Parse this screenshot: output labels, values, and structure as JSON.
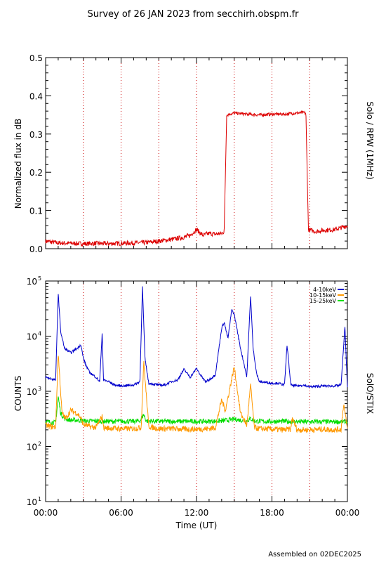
{
  "title": "Survey of 26 JAN 2023 from secchirh.obspm.fr",
  "footer": "Assembled on 02DEC2025",
  "colors": {
    "axis": "#000000",
    "hour_marker": "#cc0000",
    "rpw": "#dd0000",
    "stix_4_10": "#0000cc",
    "stix_10_15": "#ff9900",
    "stix_15_25": "#00dd00"
  },
  "chart_data": [
    {
      "type": "line",
      "ylabel": "Normalized flux in dB",
      "right_label": "Solo / RPW (1MHz)",
      "xlim": [
        "00:00",
        "24:00"
      ],
      "ylim": [
        0,
        0.5
      ],
      "yticks": [
        "0.0",
        "0.1",
        "0.2",
        "0.3",
        "0.4",
        "0.5"
      ],
      "ytick_values": [
        0,
        0.1,
        0.2,
        0.3,
        0.4,
        0.5
      ],
      "hour_markers": [
        3,
        6,
        9,
        12,
        15,
        18,
        21
      ],
      "series": [
        {
          "color": "#dd0000",
          "x_hours": [
            0,
            1,
            2,
            3,
            4,
            5,
            6,
            7,
            8,
            9,
            10,
            11,
            11.5,
            12,
            12.5,
            13,
            13.5,
            14,
            14.2,
            14.4,
            15,
            16,
            17,
            18,
            19,
            20,
            20.5,
            20.7,
            20.9,
            21.5,
            22,
            23,
            24
          ],
          "values": [
            0.02,
            0.015,
            0.014,
            0.013,
            0.014,
            0.013,
            0.014,
            0.015,
            0.016,
            0.02,
            0.024,
            0.03,
            0.035,
            0.05,
            0.035,
            0.04,
            0.038,
            0.04,
            0.045,
            0.35,
            0.355,
            0.352,
            0.35,
            0.352,
            0.352,
            0.355,
            0.356,
            0.355,
            0.05,
            0.045,
            0.048,
            0.05,
            0.06
          ]
        }
      ]
    },
    {
      "type": "line",
      "ylabel": "COUNTS",
      "right_label": "SolO/STIX",
      "xlabel": "Time (UT)",
      "xlim": [
        "00:00",
        "24:00"
      ],
      "yscale": "log",
      "ylim": [
        10,
        100000
      ],
      "yticks_base": [
        "10",
        "10",
        "10",
        "10",
        "10"
      ],
      "yticks_exp": [
        "1",
        "2",
        "3",
        "4",
        "5"
      ],
      "ytick_values": [
        10,
        100,
        1000,
        10000,
        100000
      ],
      "xticks": [
        "00:00",
        "06:00",
        "12:00",
        "18:00",
        "00:00"
      ],
      "xtick_hours": [
        0,
        6,
        12,
        18,
        24
      ],
      "hour_markers": [
        3,
        6,
        9,
        12,
        15,
        18,
        21
      ],
      "legend": [
        "4-10keV",
        "10-15keV",
        "15-25keV"
      ],
      "series": [
        {
          "name": "4-10keV",
          "color": "#0000cc",
          "x_hours": [
            0,
            0.8,
            1.0,
            1.2,
            1.5,
            2.0,
            2.5,
            2.8,
            3.0,
            3.2,
            3.5,
            4.0,
            4.3,
            4.5,
            4.6,
            5,
            5.5,
            6,
            7,
            7.5,
            7.7,
            7.9,
            8.2,
            9,
            9.5,
            10,
            10.5,
            11,
            11.5,
            12,
            12.3,
            12.7,
            13.0,
            13.5,
            14.0,
            14.2,
            14.5,
            14.8,
            15.0,
            15.5,
            15.8,
            16.0,
            16.3,
            16.5,
            16.8,
            17,
            18,
            18.5,
            19,
            19.2,
            19.5,
            20,
            20.5,
            21,
            22,
            23,
            23.5,
            23.8,
            24
          ],
          "values": [
            1800,
            1600,
            60000,
            12000,
            6000,
            5000,
            6000,
            7000,
            4000,
            3000,
            2200,
            1800,
            1500,
            12000,
            1600,
            1500,
            1300,
            1250,
            1300,
            1500,
            80000,
            4000,
            1400,
            1300,
            1300,
            1500,
            1600,
            2500,
            1800,
            2600,
            2000,
            1500,
            1600,
            2000,
            14000,
            18000,
            9000,
            30000,
            25000,
            6000,
            3000,
            1800,
            55000,
            6000,
            2000,
            1500,
            1400,
            1400,
            1300,
            7000,
            1300,
            1250,
            1300,
            1200,
            1250,
            1250,
            1300,
            15000,
            1200
          ]
        },
        {
          "name": "10-15keV",
          "color": "#ff9900",
          "x_hours": [
            0,
            0.8,
            1.0,
            1.3,
            1.6,
            2.0,
            2.5,
            2.8,
            3.0,
            3.5,
            4.0,
            4.5,
            4.6,
            5,
            6,
            7,
            7.6,
            7.8,
            8.2,
            9,
            10,
            11,
            12,
            13,
            13.5,
            14.0,
            14.3,
            14.6,
            15.0,
            15.5,
            16.0,
            16.3,
            16.6,
            17,
            18,
            19,
            19.5,
            19.6,
            20,
            21,
            22,
            23,
            23.5,
            23.7,
            24
          ],
          "values": [
            240,
            220,
            5000,
            400,
            320,
            450,
            400,
            330,
            250,
            230,
            220,
            350,
            220,
            215,
            210,
            210,
            220,
            3500,
            230,
            210,
            210,
            205,
            205,
            210,
            220,
            700,
            450,
            1000,
            2800,
            400,
            240,
            1300,
            220,
            210,
            205,
            200,
            205,
            330,
            200,
            200,
            205,
            200,
            205,
            600,
            200
          ]
        },
        {
          "name": "15-25keV",
          "color": "#00dd00",
          "x_hours": [
            0,
            0.8,
            1.0,
            1.2,
            1.5,
            2.0,
            2.5,
            3.0,
            4,
            5,
            6,
            7,
            7.5,
            7.8,
            8.0,
            9,
            10,
            11,
            12,
            13,
            14,
            14.5,
            15,
            15.5,
            16,
            16.3,
            16.6,
            17,
            18,
            19,
            20,
            21,
            22,
            23,
            24
          ],
          "values": [
            280,
            270,
            800,
            400,
            320,
            300,
            300,
            290,
            290,
            285,
            285,
            285,
            290,
            380,
            290,
            285,
            285,
            285,
            285,
            285,
            290,
            300,
            310,
            300,
            290,
            320,
            290,
            285,
            285,
            285,
            280,
            280,
            280,
            280,
            280
          ]
        }
      ]
    }
  ]
}
